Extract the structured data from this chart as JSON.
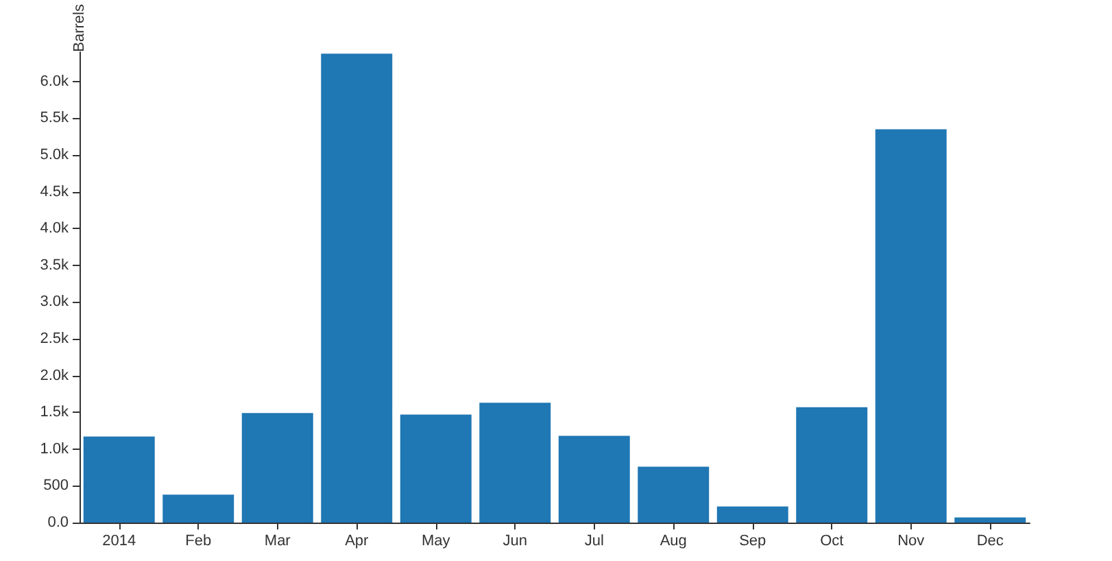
{
  "chart_data": {
    "type": "bar",
    "ylabel": "Barrels",
    "categories": [
      "2014",
      "Feb",
      "Mar",
      "Apr",
      "May",
      "Jun",
      "Jul",
      "Aug",
      "Sep",
      "Oct",
      "Nov",
      "Dec"
    ],
    "series": [
      {
        "color": "#1f77b4",
        "values": [
          1170,
          380,
          1490,
          6380,
          1470,
          1630,
          1180,
          760,
          220,
          1570,
          5350,
          70
        ]
      }
    ],
    "ylim": [
      0,
      6400
    ],
    "yticks": [
      {
        "value": 0,
        "label": "0.0"
      },
      500,
      {
        "value": 1000,
        "label": "1.0k"
      },
      {
        "value": 1500,
        "label": "1.5k"
      },
      {
        "value": 2000,
        "label": "2.0k"
      },
      {
        "value": 2500,
        "label": "2.5k"
      },
      {
        "value": 3000,
        "label": "3.0k"
      },
      {
        "value": 3500,
        "label": "3.5k"
      },
      {
        "value": 4000,
        "label": "4.0k"
      },
      {
        "value": 4500,
        "label": "4.5k"
      },
      {
        "value": 5000,
        "label": "5.0k"
      },
      {
        "value": 5500,
        "label": "5.5k"
      },
      {
        "value": 6000,
        "label": "6.0k"
      }
    ],
    "grid": false
  }
}
